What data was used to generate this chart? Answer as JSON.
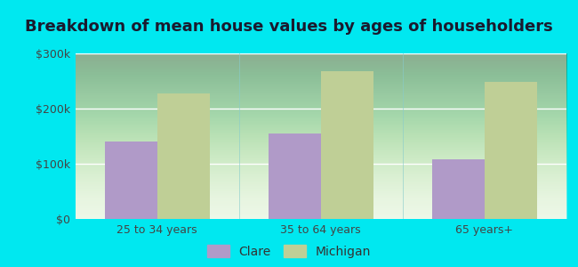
{
  "title": "Breakdown of mean house values by ages of householders",
  "categories": [
    "25 to 34 years",
    "35 to 64 years",
    "65 years+"
  ],
  "clare_bar_values": [
    140000,
    155000,
    108000
  ],
  "michigan_bar_values": [
    228000,
    268000,
    248000
  ],
  "ylim": [
    0,
    300000
  ],
  "yticks": [
    0,
    100000,
    200000,
    300000
  ],
  "ytick_labels": [
    "$0",
    "$100k",
    "$200k",
    "$300k"
  ],
  "clare_color": "#b09ac8",
  "michigan_color": "#bfcf96",
  "background_outer": "#00e8f0",
  "background_inner_top": "#d8eed8",
  "background_inner_bottom": "#f0fff0",
  "title_fontsize": 13,
  "title_color": "#1a1a2e",
  "legend_labels": [
    "Clare",
    "Michigan"
  ],
  "bar_width": 0.32,
  "tick_label_color": "#444444",
  "grid_color": "#ffffff",
  "separator_color": "#88cccc"
}
